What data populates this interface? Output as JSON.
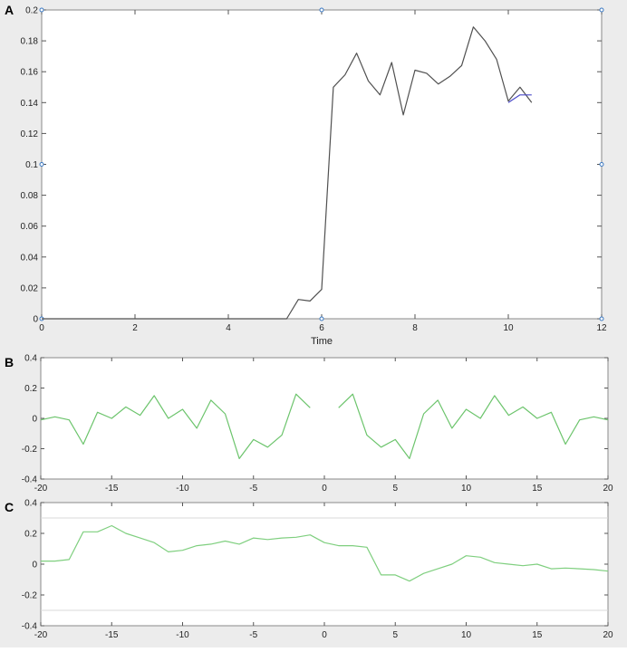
{
  "panels": {
    "A": {
      "label": "A"
    },
    "B": {
      "label": "B"
    },
    "C": {
      "label": "C"
    }
  },
  "chart_data": [
    {
      "type": "line",
      "panel": "A",
      "xlabel": "Time",
      "ylabel": "",
      "xlim": [
        0,
        12
      ],
      "ylim": [
        0,
        0.2
      ],
      "xticks": [
        0,
        2,
        4,
        6,
        8,
        10,
        12
      ],
      "yticks": [
        0,
        0.02,
        0.04,
        0.06,
        0.08,
        0.1,
        0.12,
        0.14,
        0.16,
        0.18,
        0.2
      ],
      "xtick_labels": [
        "0",
        "2",
        "4",
        "6",
        "8",
        "10",
        "12"
      ],
      "ytick_labels": [
        "0",
        "0.02",
        "0.04",
        "0.06",
        "0.08",
        "0.1",
        "0.12",
        "0.14",
        "0.16",
        "0.18",
        "0.2"
      ],
      "grid": false,
      "background": "#ffffff",
      "series": [
        {
          "color": "#505050",
          "x": [
            0,
            5.0,
            5.25,
            5.5,
            5.75,
            6.0,
            6.25,
            6.5,
            6.75,
            7.0,
            7.25,
            7.5,
            7.75,
            8.0,
            8.25,
            8.5,
            8.75,
            9.0,
            9.25,
            9.5,
            9.75,
            10.0,
            10.25,
            10.5
          ],
          "y": [
            0,
            0,
            0,
            0.0125,
            0.0115,
            0.019,
            0.15,
            0.158,
            0.172,
            0.154,
            0.145,
            0.166,
            0.132,
            0.161,
            0.159,
            0.152,
            0.157,
            0.164,
            0.189,
            0.18,
            0.168,
            0.141,
            0.15,
            0.14
          ]
        },
        {
          "color": "#4a4ac8",
          "x": [
            10.0,
            10.25,
            10.5
          ],
          "y": [
            0.14,
            0.145,
            0.145
          ]
        }
      ]
    },
    {
      "type": "line",
      "panel": "B",
      "xlabel": "",
      "ylabel": "",
      "xlim": [
        -20,
        20
      ],
      "ylim": [
        -0.4,
        0.4
      ],
      "xticks": [
        -20,
        -15,
        -10,
        -5,
        0,
        5,
        10,
        15,
        20
      ],
      "yticks": [
        -0.4,
        -0.2,
        0,
        0.2,
        0.4
      ],
      "xtick_labels": [
        "-20",
        "-15",
        "-10",
        "-5",
        "0",
        "5",
        "10",
        "15",
        "20"
      ],
      "ytick_labels": [
        "-0.4",
        "-0.2",
        "0",
        "0.2",
        "0.4"
      ],
      "grid": false,
      "background": "#ffffff",
      "series": [
        {
          "color": "#6cc46c",
          "x": [
            -20,
            -19,
            -18,
            -17,
            -16,
            -15,
            -14,
            -13,
            -12,
            -11,
            -10,
            -9,
            -8,
            -7,
            -6,
            -5,
            -4,
            -3,
            -2,
            -1
          ],
          "y": [
            -0.01,
            0.01,
            -0.01,
            -0.17,
            0.04,
            0,
            0.075,
            0.02,
            0.15,
            0,
            0.06,
            -0.065,
            0.12,
            0.03,
            -0.265,
            -0.14,
            -0.19,
            -0.11,
            0.16,
            0.07
          ]
        },
        {
          "color": "#6cc46c",
          "x": [
            1,
            2,
            3,
            4,
            5,
            6,
            7,
            8,
            9,
            10,
            11,
            12,
            13,
            14,
            15,
            16,
            17,
            18,
            19,
            20
          ],
          "y": [
            0.07,
            0.16,
            -0.11,
            -0.19,
            -0.14,
            -0.265,
            0.03,
            0.12,
            -0.065,
            0.06,
            0,
            0.15,
            0.02,
            0.075,
            0,
            0.04,
            -0.17,
            -0.01,
            0.01,
            -0.01
          ]
        }
      ]
    },
    {
      "type": "line",
      "panel": "C",
      "xlabel": "",
      "ylabel": "",
      "xlim": [
        -20,
        20
      ],
      "ylim": [
        -0.4,
        0.4
      ],
      "xticks": [
        -20,
        -15,
        -10,
        -5,
        0,
        5,
        10,
        15,
        20
      ],
      "yticks": [
        -0.4,
        -0.2,
        0,
        0.2,
        0.4
      ],
      "xtick_labels": [
        "-20",
        "-15",
        "-10",
        "-5",
        "0",
        "5",
        "10",
        "15",
        "20"
      ],
      "ytick_labels": [
        "-0.4",
        "-0.2",
        "0",
        "0.2",
        "0.4"
      ],
      "grid": false,
      "reference_lines": [
        0.3,
        -0.3
      ],
      "background": "#ffffff",
      "series": [
        {
          "color": "#7fcf7f",
          "x": [
            -20,
            -19,
            -18,
            -17,
            -16,
            -15,
            -14,
            -13,
            -12,
            -11,
            -10,
            -9,
            -8,
            -7,
            -6,
            -5,
            -4,
            -3,
            -2,
            -1,
            0,
            1,
            2,
            3,
            4,
            5,
            6,
            7,
            8,
            9,
            10,
            11,
            12,
            13,
            14,
            15,
            16,
            17,
            18,
            19,
            20
          ],
          "y": [
            0.02,
            0.02,
            0.03,
            0.21,
            0.21,
            0.25,
            0.2,
            0.17,
            0.14,
            0.08,
            0.09,
            0.12,
            0.13,
            0.15,
            0.13,
            0.17,
            0.16,
            0.17,
            0.175,
            0.19,
            0.14,
            0.12,
            0.12,
            0.11,
            -0.07,
            -0.07,
            -0.11,
            -0.06,
            -0.03,
            0,
            0.055,
            0.045,
            0.01,
            0,
            -0.01,
            0,
            -0.03,
            -0.025,
            -0.03,
            -0.035,
            -0.045
          ]
        }
      ]
    }
  ]
}
